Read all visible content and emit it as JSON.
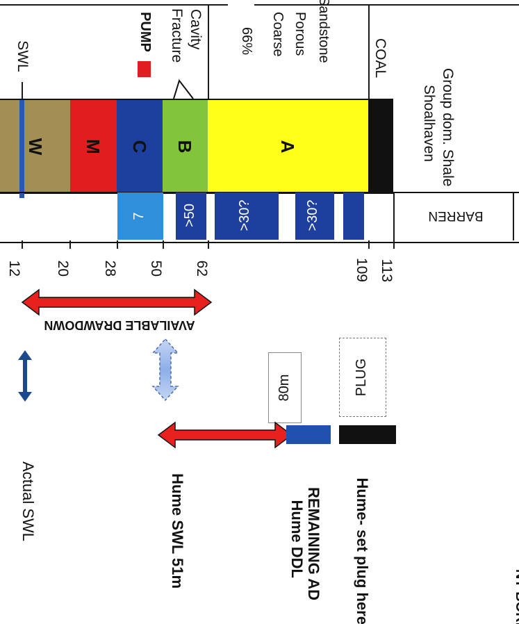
{
  "labels": {
    "swl_col": "SWL",
    "pump": "PUMP",
    "fracture": "Fracture",
    "cavity": "Cavity",
    "sand_pct": "66%",
    "sand_1": "Coarse",
    "sand_2": "Porous",
    "sand_3": "Sandstone",
    "coal": "COAL",
    "shale_1": "Shoalhaven",
    "shale_2": "Group dom. Shale",
    "barren": "BARREN",
    "drawdown": "AVAILABLE DRAWDOWN",
    "box_80m": "80m",
    "plug_box": "PLUG",
    "actual_swl": "Actual SWL",
    "hume_swl": "Hume SWL 51m",
    "hume_ddl_1": "Hume DDL",
    "hume_ddl_2": "REMAINING AD",
    "hume_plug": "Hume- set plug here",
    "bore_title": "NT BORE"
  },
  "units": [
    {
      "label": "W",
      "color": "#a38f55"
    },
    {
      "label": "M",
      "color": "#e21d1d"
    },
    {
      "label": "C",
      "color": "#1d3f9e"
    },
    {
      "label": "B",
      "color": "#82c43a"
    },
    {
      "label": "A",
      "color": "#ffff19"
    },
    {
      "label": "",
      "color": "#111111"
    }
  ],
  "yields": [
    "7",
    ">50",
    ">30?",
    ">30?"
  ],
  "depths": [
    "12",
    "20",
    "28",
    "50",
    "62",
    "109",
    "113"
  ],
  "colors": {
    "swl_line": "#2a56b8",
    "pump_marker": "#e21d1d",
    "arrow_red": "#e8201e",
    "arrow_blue": "#1b4a8c",
    "arrow_light": "#9fb8e6",
    "yield_light": "#2f8fdb",
    "yield_dark": "#1d3f9e",
    "bar_blue": "#1f52b0",
    "bar_black": "#111111"
  }
}
